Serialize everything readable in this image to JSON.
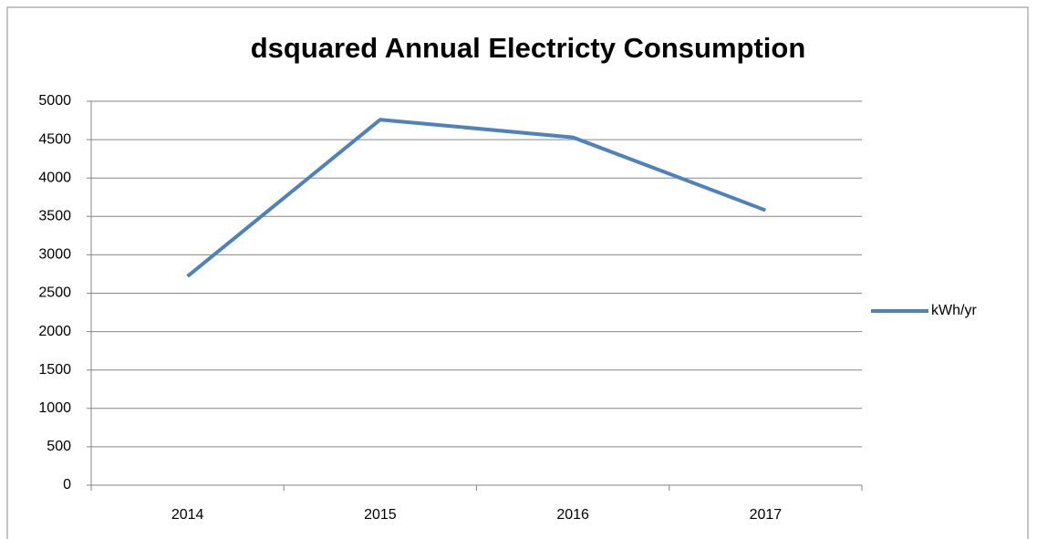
{
  "chart_data": {
    "type": "line",
    "title": "dsquared Annual Electricty Consumption",
    "categories": [
      "2014",
      "2015",
      "2016",
      "2017"
    ],
    "series": [
      {
        "name": "kWh/yr",
        "color": "#4f81bd",
        "values": [
          2720,
          4760,
          4530,
          3580
        ]
      }
    ],
    "ylim": [
      0,
      5000
    ],
    "yticks": [
      0,
      500,
      1000,
      1500,
      2000,
      2500,
      3000,
      3500,
      4000,
      4500,
      5000
    ],
    "grid": true,
    "legend": "right"
  }
}
